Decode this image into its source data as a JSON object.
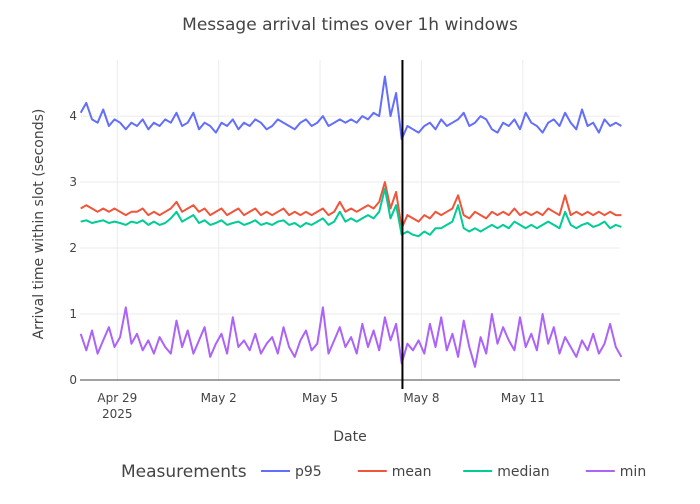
{
  "chart_data": {
    "type": "line",
    "title": "Message arrival times over 1h windows",
    "xlabel": "Date",
    "ylabel": "Arrival time within slot (seconds)",
    "x_start": "2025-04-27T22:00:00",
    "x_step_hours": 4,
    "xlim": [
      "2025-04-27T21:30:00",
      "2025-05-13T21:00:00"
    ],
    "ylim": [
      0,
      4.85
    ],
    "x_ticks": [
      {
        "date": "2025-04-29",
        "label": "Apr 29",
        "sublabel": "2025"
      },
      {
        "date": "2025-05-02",
        "label": "May 2",
        "sublabel": ""
      },
      {
        "date": "2025-05-05",
        "label": "May 5",
        "sublabel": ""
      },
      {
        "date": "2025-05-08",
        "label": "May 8",
        "sublabel": ""
      },
      {
        "date": "2025-05-11",
        "label": "May 11",
        "sublabel": ""
      }
    ],
    "y_ticks": [
      0,
      1,
      2,
      3,
      4
    ],
    "grid": true,
    "vertical_marker": "2025-05-07T10:30:00",
    "legend": {
      "title": "Measurements",
      "placement": "bottom"
    },
    "series": [
      {
        "name": "p95",
        "color": "#636efa",
        "values": [
          4.05,
          4.2,
          3.95,
          3.9,
          4.1,
          3.85,
          3.95,
          3.9,
          3.8,
          3.9,
          3.85,
          3.95,
          3.8,
          3.9,
          3.85,
          3.95,
          3.9,
          4.05,
          3.85,
          3.9,
          4.05,
          3.8,
          3.9,
          3.85,
          3.75,
          3.9,
          3.85,
          3.95,
          3.8,
          3.9,
          3.85,
          3.95,
          3.9,
          3.8,
          3.85,
          3.95,
          3.9,
          3.85,
          3.8,
          3.9,
          3.95,
          3.85,
          3.9,
          4.0,
          3.85,
          3.9,
          3.95,
          3.9,
          3.95,
          3.9,
          4.0,
          3.95,
          4.05,
          4.0,
          4.6,
          4.0,
          4.35,
          3.65,
          3.85,
          3.8,
          3.75,
          3.85,
          3.9,
          3.8,
          3.95,
          3.85,
          3.9,
          3.95,
          4.05,
          3.85,
          3.9,
          4.0,
          3.95,
          3.8,
          3.75,
          3.9,
          3.85,
          3.95,
          3.8,
          4.05,
          3.9,
          3.85,
          3.75,
          3.9,
          3.95,
          3.85,
          4.05,
          3.9,
          3.8,
          4.1,
          3.85,
          3.9,
          3.75,
          3.95,
          3.85,
          3.9,
          3.85
        ]
      },
      {
        "name": "mean",
        "color": "#ef553b",
        "values": [
          2.6,
          2.65,
          2.6,
          2.55,
          2.6,
          2.55,
          2.6,
          2.55,
          2.5,
          2.55,
          2.55,
          2.6,
          2.5,
          2.55,
          2.5,
          2.55,
          2.6,
          2.7,
          2.55,
          2.6,
          2.65,
          2.55,
          2.6,
          2.5,
          2.55,
          2.6,
          2.5,
          2.55,
          2.6,
          2.5,
          2.55,
          2.6,
          2.5,
          2.55,
          2.5,
          2.55,
          2.6,
          2.5,
          2.55,
          2.5,
          2.55,
          2.5,
          2.55,
          2.6,
          2.5,
          2.55,
          2.7,
          2.55,
          2.6,
          2.55,
          2.6,
          2.65,
          2.6,
          2.7,
          3.0,
          2.6,
          2.85,
          2.3,
          2.5,
          2.45,
          2.4,
          2.5,
          2.45,
          2.55,
          2.5,
          2.55,
          2.6,
          2.8,
          2.5,
          2.45,
          2.55,
          2.5,
          2.45,
          2.55,
          2.5,
          2.55,
          2.5,
          2.6,
          2.5,
          2.55,
          2.5,
          2.55,
          2.5,
          2.6,
          2.55,
          2.5,
          2.8,
          2.5,
          2.55,
          2.5,
          2.55,
          2.5,
          2.55,
          2.5,
          2.55,
          2.5,
          2.5
        ]
      },
      {
        "name": "median",
        "color": "#00cc96",
        "values": [
          2.4,
          2.42,
          2.38,
          2.4,
          2.42,
          2.38,
          2.4,
          2.38,
          2.35,
          2.4,
          2.38,
          2.42,
          2.35,
          2.4,
          2.35,
          2.38,
          2.45,
          2.55,
          2.4,
          2.45,
          2.5,
          2.38,
          2.42,
          2.35,
          2.38,
          2.42,
          2.35,
          2.38,
          2.4,
          2.35,
          2.38,
          2.42,
          2.35,
          2.38,
          2.35,
          2.4,
          2.42,
          2.35,
          2.38,
          2.32,
          2.38,
          2.35,
          2.4,
          2.45,
          2.35,
          2.4,
          2.55,
          2.4,
          2.45,
          2.4,
          2.45,
          2.5,
          2.45,
          2.55,
          2.9,
          2.45,
          2.65,
          2.2,
          2.25,
          2.2,
          2.18,
          2.25,
          2.2,
          2.3,
          2.3,
          2.35,
          2.4,
          2.65,
          2.3,
          2.25,
          2.3,
          2.25,
          2.3,
          2.35,
          2.3,
          2.35,
          2.3,
          2.4,
          2.35,
          2.3,
          2.35,
          2.3,
          2.35,
          2.4,
          2.35,
          2.3,
          2.55,
          2.35,
          2.3,
          2.35,
          2.38,
          2.32,
          2.35,
          2.4,
          2.3,
          2.35,
          2.32
        ]
      },
      {
        "name": "min",
        "color": "#ab63fa",
        "values": [
          0.7,
          0.45,
          0.75,
          0.4,
          0.6,
          0.8,
          0.5,
          0.65,
          1.1,
          0.55,
          0.7,
          0.45,
          0.6,
          0.4,
          0.65,
          0.5,
          0.4,
          0.9,
          0.5,
          0.75,
          0.4,
          0.6,
          0.8,
          0.35,
          0.55,
          0.7,
          0.4,
          0.95,
          0.5,
          0.6,
          0.45,
          0.7,
          0.4,
          0.55,
          0.65,
          0.4,
          0.8,
          0.5,
          0.35,
          0.6,
          0.75,
          0.45,
          0.55,
          1.1,
          0.4,
          0.6,
          0.8,
          0.5,
          0.65,
          0.4,
          0.85,
          0.5,
          0.75,
          0.45,
          0.95,
          0.6,
          0.85,
          0.25,
          0.55,
          0.45,
          0.6,
          0.4,
          0.85,
          0.5,
          0.95,
          0.45,
          0.7,
          0.35,
          0.9,
          0.5,
          0.2,
          0.65,
          0.4,
          1.0,
          0.55,
          0.8,
          0.6,
          0.45,
          0.95,
          0.5,
          0.7,
          0.45,
          1.0,
          0.55,
          0.8,
          0.4,
          0.65,
          0.5,
          0.35,
          0.6,
          0.45,
          0.7,
          0.4,
          0.55,
          0.85,
          0.5,
          0.35
        ]
      }
    ]
  }
}
